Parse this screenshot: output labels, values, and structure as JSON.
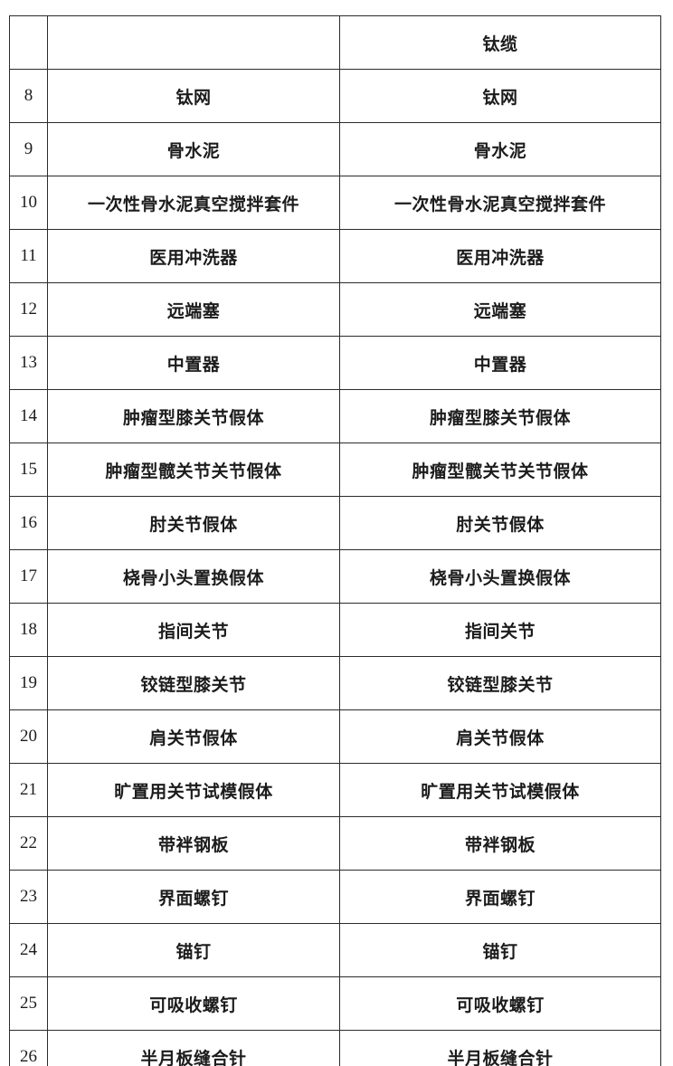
{
  "colors": {
    "background": "#ffffff",
    "text": "#1c1c1c",
    "border": "#2b2b2b"
  },
  "table": {
    "rows": [
      {
        "num": "",
        "left": "",
        "right": "钛缆"
      },
      {
        "num": "8",
        "left": "钛网",
        "right": "钛网"
      },
      {
        "num": "9",
        "left": "骨水泥",
        "right": "骨水泥"
      },
      {
        "num": "10",
        "left": "一次性骨水泥真空搅拌套件",
        "right": "一次性骨水泥真空搅拌套件"
      },
      {
        "num": "11",
        "left": "医用冲洗器",
        "right": "医用冲洗器"
      },
      {
        "num": "12",
        "left": "远端塞",
        "right": "远端塞"
      },
      {
        "num": "13",
        "left": "中置器",
        "right": "中置器"
      },
      {
        "num": "14",
        "left": "肿瘤型膝关节假体",
        "right": "肿瘤型膝关节假体"
      },
      {
        "num": "15",
        "left": "肿瘤型髋关节关节假体",
        "right": "肿瘤型髋关节关节假体"
      },
      {
        "num": "16",
        "left": "肘关节假体",
        "right": "肘关节假体"
      },
      {
        "num": "17",
        "left": "桡骨小头置换假体",
        "right": "桡骨小头置换假体"
      },
      {
        "num": "18",
        "left": "指间关节",
        "right": "指间关节"
      },
      {
        "num": "19",
        "left": "铰链型膝关节",
        "right": "铰链型膝关节"
      },
      {
        "num": "20",
        "left": "肩关节假体",
        "right": "肩关节假体"
      },
      {
        "num": "21",
        "left": "旷置用关节试模假体",
        "right": "旷置用关节试模假体"
      },
      {
        "num": "22",
        "left": "带袢钢板",
        "right": "带袢钢板"
      },
      {
        "num": "23",
        "left": "界面螺钉",
        "right": "界面螺钉"
      },
      {
        "num": "24",
        "left": "锚钉",
        "right": "锚钉"
      },
      {
        "num": "25",
        "left": "可吸收螺钉",
        "right": "可吸收螺钉"
      },
      {
        "num": "26",
        "left": "半月板缝合针",
        "right": "半月板缝合针"
      }
    ]
  }
}
